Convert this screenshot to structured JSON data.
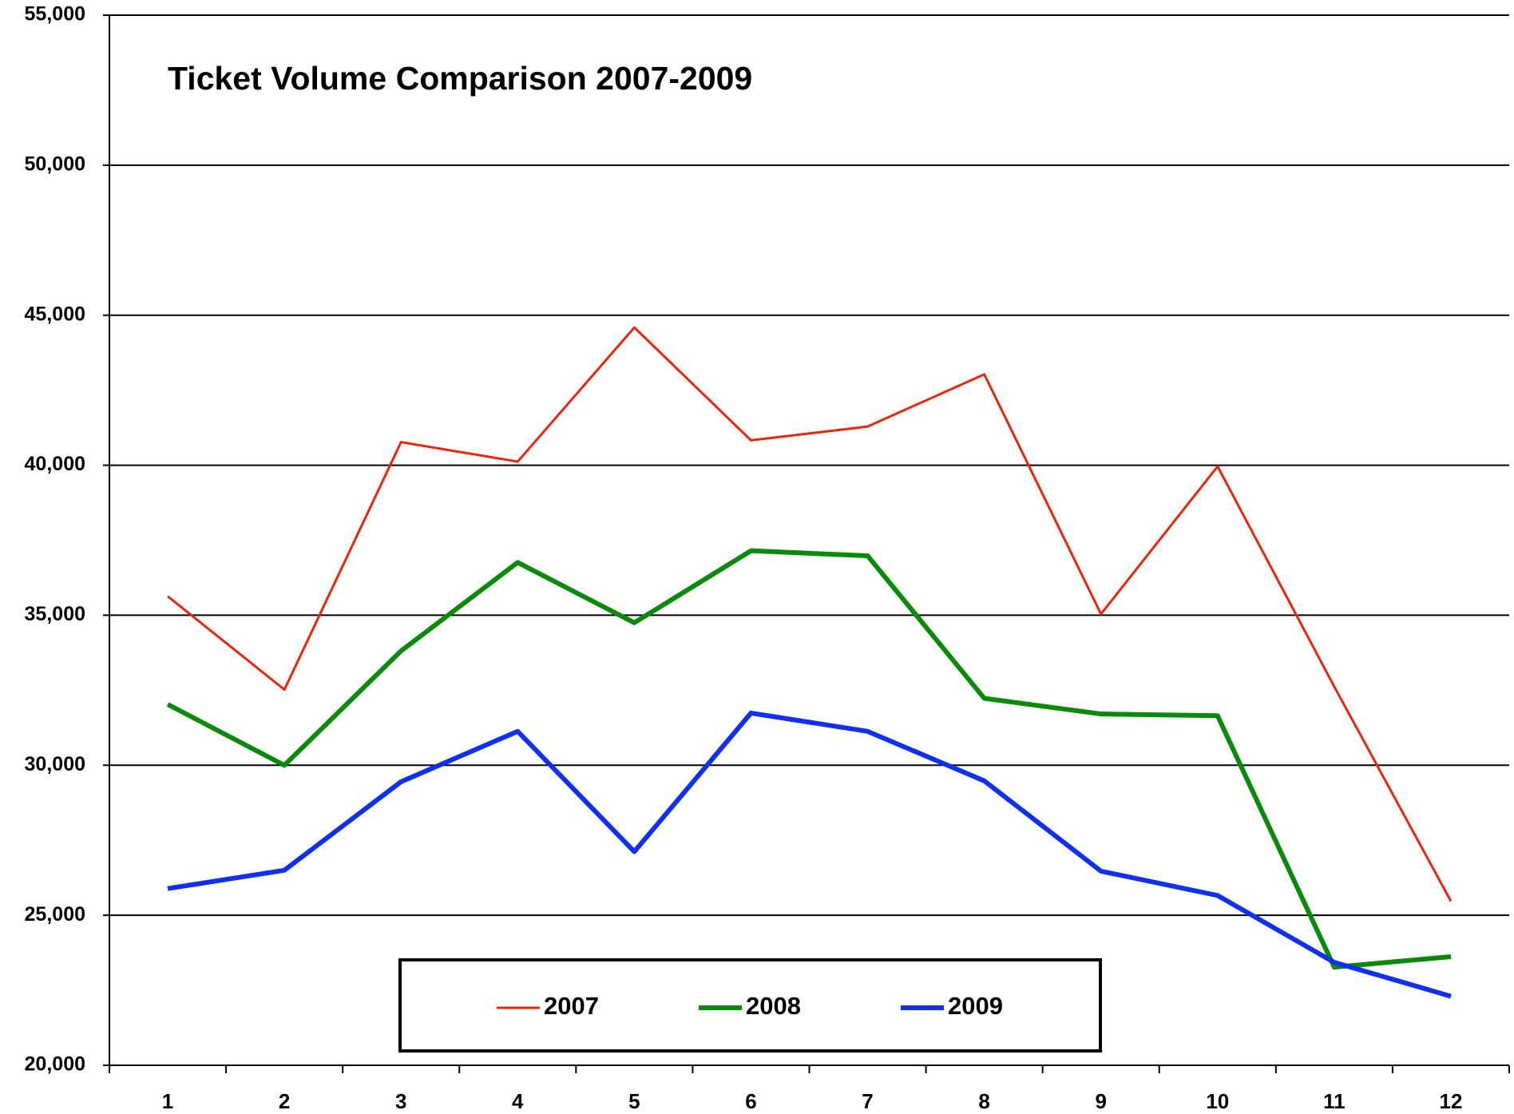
{
  "chart_data": {
    "type": "line",
    "title": "Ticket Volume Comparison 2007-2009",
    "categories": [
      "1",
      "2",
      "3",
      "4",
      "5",
      "6",
      "7",
      "8",
      "9",
      "10",
      "11",
      "12"
    ],
    "series": [
      {
        "name": "2007",
        "color": "#e8260c",
        "width": 3,
        "values": [
          35630,
          32520,
          40770,
          40120,
          44590,
          40830,
          41290,
          43030,
          35040,
          39960,
          32620,
          25470
        ]
      },
      {
        "name": "2008",
        "color": "#0a8a0a",
        "width": 6,
        "values": [
          32030,
          30000,
          33810,
          36760,
          34750,
          37150,
          36980,
          32230,
          31710,
          31650,
          23270,
          23620
        ]
      },
      {
        "name": "2009",
        "color": "#1030f0",
        "width": 6,
        "values": [
          25890,
          26500,
          29450,
          31130,
          27120,
          31740,
          31130,
          29480,
          26470,
          25660,
          23430,
          22300
        ]
      }
    ],
    "ylim": [
      20000,
      55000
    ],
    "yticks": [
      {
        "value": 20000,
        "label": "20,000"
      },
      {
        "value": 25000,
        "label": "25,000"
      },
      {
        "value": 30000,
        "label": "30,000"
      },
      {
        "value": 35000,
        "label": "35,000"
      },
      {
        "value": 40000,
        "label": "40,000"
      },
      {
        "value": 45000,
        "label": "45,000"
      },
      {
        "value": 50000,
        "label": "50,000"
      },
      {
        "value": 55000,
        "label": "55,000"
      }
    ],
    "grid": true,
    "legend": "lower center"
  }
}
